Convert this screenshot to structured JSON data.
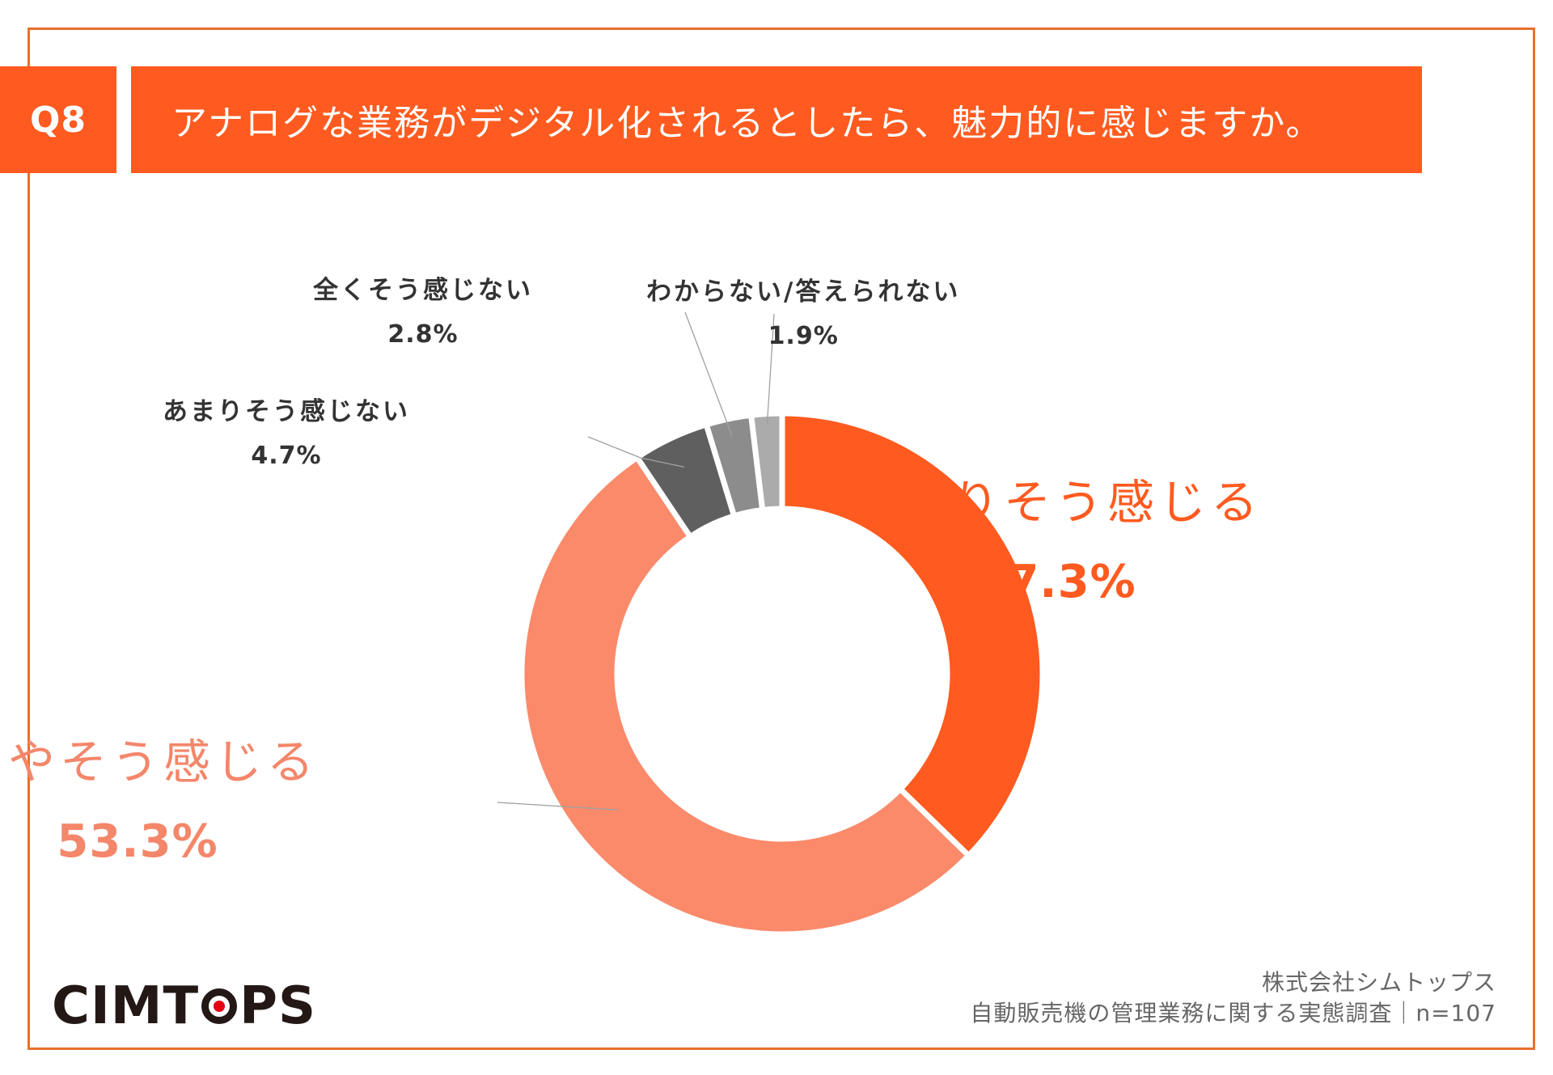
{
  "header": {
    "question_no": "Q8",
    "title": "アナログな業務がデジタル化されるとしたら、魅力的に感じますか。"
  },
  "chart_data": {
    "type": "pie",
    "donut": true,
    "categories": [
      "かなりそう感じる",
      "ややそう感じる",
      "あまりそう感じない",
      "全くそう感じない",
      "わからない/答えられない"
    ],
    "values": [
      37.3,
      53.3,
      4.7,
      2.8,
      1.9
    ],
    "value_labels": [
      "37.3%",
      "53.3%",
      "4.7%",
      "2.8%",
      "1.9%"
    ],
    "colors": [
      "#ff5a1f",
      "#fa8a6a",
      "#5f5f5f",
      "#8c8c8c",
      "#ababab"
    ],
    "start": "top",
    "direction": "clockwise"
  },
  "footer": {
    "company": "株式会社シムトップス",
    "survey": "自動販売機の管理業務に関する実態調査｜n=107"
  },
  "logo": {
    "before": "CIMT",
    "after": "PS"
  }
}
